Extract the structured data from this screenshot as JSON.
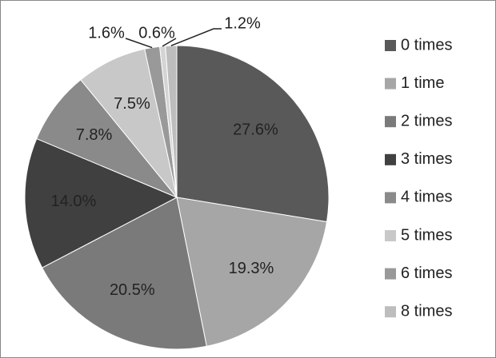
{
  "chart_data": {
    "type": "pie",
    "categories": [
      "0 times",
      "1 time",
      "2 times",
      "3 times",
      "4 times",
      "5 times",
      "6 times",
      null,
      "8 times"
    ],
    "values": [
      27.6,
      19.3,
      20.5,
      14.0,
      7.8,
      7.5,
      1.6,
      0.6,
      1.2
    ],
    "value_labels": [
      "27.6%",
      "19.3%",
      "20.5%",
      "14.0%",
      "7.8%",
      "7.5%",
      "1.6%",
      "0.6%",
      "1.2%"
    ],
    "colors": [
      "#595959",
      "#a6a6a6",
      "#7a7a7a",
      "#404040",
      "#8a8a8a",
      "#c8c8c8",
      "#999999",
      "#d4d4d4",
      "#bdbdbd"
    ],
    "legend": "right"
  }
}
